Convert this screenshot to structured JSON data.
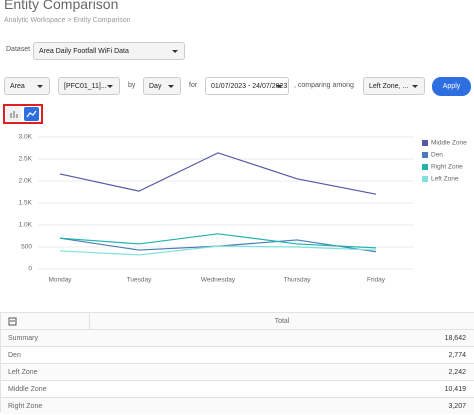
{
  "header": {
    "title": "Entity Comparison",
    "breadcrumb": "Analytic Workspace > Entity Comparison"
  },
  "filters": {
    "dataset_label": "Dataset",
    "dataset": "Area Daily Footfall WiFi Data",
    "level": "Area",
    "entity": "[PFC01_11]...",
    "by": "by",
    "period": "Day",
    "for": "for",
    "date_range": "01/07/2023 - 24/07/2023",
    "comparing": ", comparing among",
    "compare": "Left Zone, ...",
    "apply": "Apply"
  },
  "chart_data": {
    "type": "line",
    "categories": [
      "Monday",
      "Tuesday",
      "Wednesday",
      "Thursday",
      "Friday"
    ],
    "series": [
      {
        "name": "Middle Zone",
        "color": "#5558a8",
        "values": [
          2160,
          1770,
          2640,
          2050,
          1700
        ]
      },
      {
        "name": "Den",
        "color": "#4a7db8",
        "values": [
          700,
          430,
          520,
          660,
          390
        ]
      },
      {
        "name": "Right Zone",
        "color": "#1fb3ac",
        "values": [
          700,
          570,
          800,
          570,
          480
        ]
      },
      {
        "name": "Left Zone",
        "color": "#7fe0dc",
        "values": [
          410,
          320,
          520,
          500,
          430
        ]
      }
    ],
    "ylim": [
      0,
      3000
    ],
    "yticks": [
      0,
      500,
      {
        "value": 1000,
        "label": "1.0K"
      },
      {
        "value": 1500,
        "label": "1.5K"
      },
      {
        "value": 2000,
        "label": "2.0K"
      },
      {
        "value": 2500,
        "label": "2.5K"
      },
      {
        "value": 3000,
        "label": "3.0K"
      }
    ],
    "grid": true,
    "legend": "right"
  },
  "table": {
    "header": [
      "Total"
    ],
    "rows": [
      [
        "Summary",
        "18,642"
      ],
      [
        "Den",
        "2,774"
      ],
      [
        "Left Zone",
        "2,242"
      ],
      [
        "Middle Zone",
        "10,419"
      ],
      [
        "Right Zone",
        "3,207"
      ]
    ]
  }
}
